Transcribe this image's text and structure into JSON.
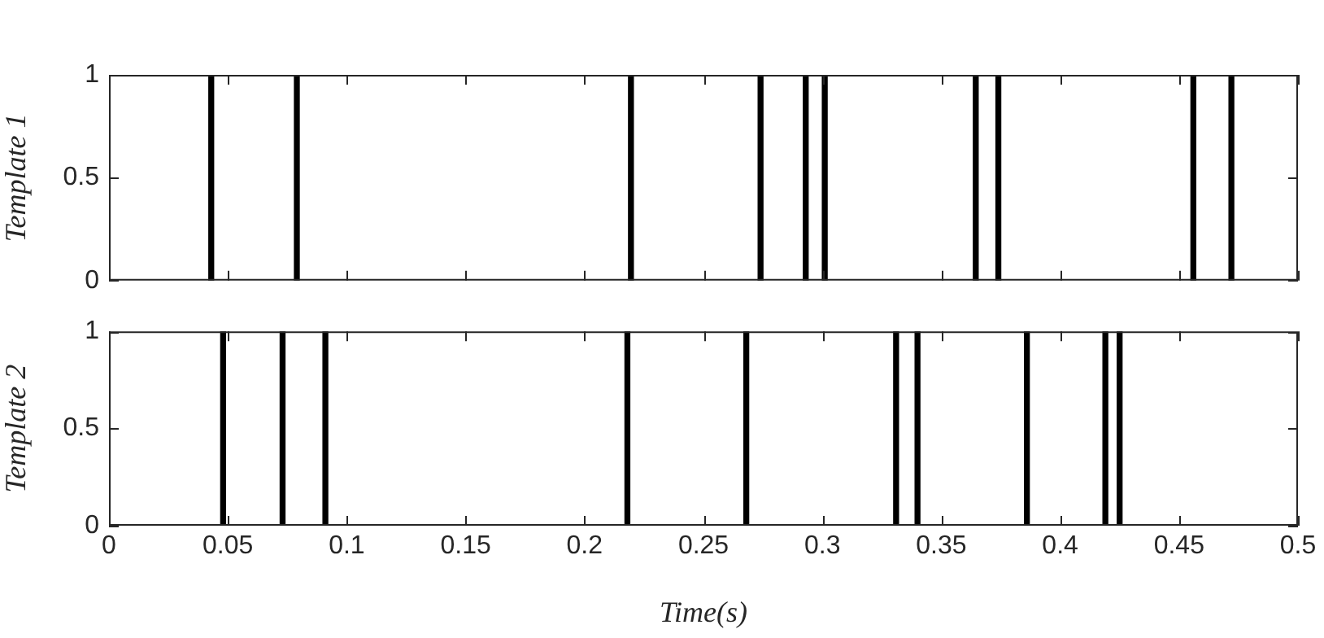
{
  "chart_data": [
    {
      "type": "bar",
      "ylabel": "Template 1",
      "x": [
        0.043,
        0.079,
        0.2195,
        0.274,
        0.293,
        0.301,
        0.3645,
        0.374,
        0.456,
        0.472
      ],
      "values": [
        1,
        1,
        1,
        1,
        1,
        1,
        1,
        1,
        1,
        1
      ],
      "color": "#000000",
      "xlim": [
        0,
        0.5
      ],
      "xticks": [
        0,
        0.05,
        0.1,
        0.15,
        0.2,
        0.25,
        0.3,
        0.35,
        0.4,
        0.45,
        0.5
      ],
      "ylim": [
        0,
        1
      ],
      "yticks": [
        0,
        0.5,
        1
      ],
      "tick_labels": "y",
      "grid": false,
      "legend": false
    },
    {
      "type": "bar",
      "ylabel": "Template 2",
      "xlabel": "Time(s)",
      "x": [
        0.048,
        0.073,
        0.091,
        0.218,
        0.268,
        0.331,
        0.34,
        0.386,
        0.419,
        0.425
      ],
      "values": [
        1,
        1,
        1,
        1,
        1,
        1,
        1,
        1,
        1,
        1
      ],
      "color": "#000000",
      "xlim": [
        0,
        0.5
      ],
      "xticks": [
        0,
        0.05,
        0.1,
        0.15,
        0.2,
        0.25,
        0.3,
        0.35,
        0.4,
        0.45,
        0.5
      ],
      "ylim": [
        0,
        1
      ],
      "yticks": [
        0,
        0.5,
        1
      ],
      "grid": false,
      "legend": false
    }
  ]
}
